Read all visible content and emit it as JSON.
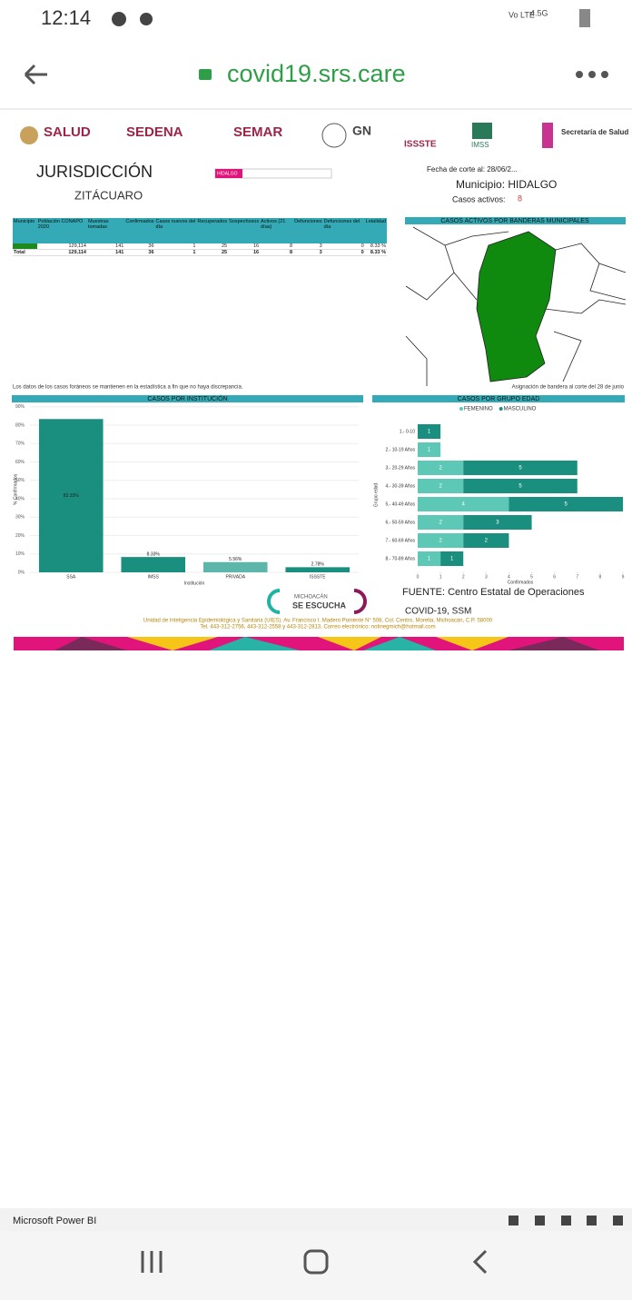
{
  "status": {
    "time": "12:14",
    "network": "Vo LTE",
    "speed": "4.5G"
  },
  "browser": {
    "url": "covid19.srs.care"
  },
  "logos": [
    "SALUD",
    "SEDENA",
    "SEMAR",
    "GN",
    "ISSSTE",
    "IMSS",
    "Secretaría de Salud"
  ],
  "header": {
    "title": "JURISDICCIÓN",
    "subtitle": "ZITÁCUARO",
    "filter": "HIDALGO",
    "date": "Fecha de corte al: 28/06/2...",
    "municipio": "Municipio: HIDALGO",
    "activos_label": "Casos activos:",
    "activos_value": "8"
  },
  "table": {
    "columns": [
      "Municipio",
      "Población CONAPO 2020",
      "Muestras tomadas",
      "Confirmados",
      "Casos nuevos del día",
      "Recuperados",
      "Sospechosos",
      "Activos (21 días)",
      "Defunciones",
      "Defunciones del día",
      "Letalidad"
    ],
    "rows": [
      [
        "HIDALGO",
        "129,114",
        "141",
        "36",
        "1",
        "25",
        "16",
        "8",
        "3",
        "0",
        "8.33 %"
      ],
      [
        "Total",
        "129,114",
        "141",
        "36",
        "1",
        "25",
        "16",
        "8",
        "3",
        "0",
        "8.33 %"
      ]
    ],
    "note": "Los datos de los casos foráneos se mantienen en la estadística a fin que no haya discrepancia."
  },
  "map": {
    "title": "CASOS ACTIVOS POR BANDERAS MUNICIPALES",
    "note": "Asignación de bandera al corte del 28 de junio"
  },
  "chart_data": [
    {
      "type": "bar",
      "title": "CASOS POR INSTITUCIÓN",
      "categories": [
        "SSA",
        "IMSS",
        "PRIVADA",
        "ISSSTE"
      ],
      "values": [
        83.33,
        8.33,
        5.56,
        2.78
      ],
      "value_labels": [
        "83.33%",
        "8.33%",
        "5.56%",
        "2.78%"
      ],
      "colors": [
        "#1b8f7f",
        "#1b8f7f",
        "#5cb7aa",
        "#1b8f7f"
      ],
      "ylim": [
        0,
        90
      ],
      "yticks": [
        {
          "value": 0,
          "label": "0%"
        },
        {
          "value": 10,
          "label": "10%"
        },
        {
          "value": 20,
          "label": "20%"
        },
        {
          "value": 30,
          "label": "30%"
        },
        {
          "value": 40,
          "label": "40%"
        },
        {
          "value": 50,
          "label": "50%"
        },
        {
          "value": 60,
          "label": "60%"
        },
        {
          "value": 70,
          "label": "70%"
        },
        {
          "value": 80,
          "label": "80%"
        },
        {
          "value": 90,
          "label": "90%"
        }
      ],
      "ylabel": "% Confirmados",
      "xlabel": "Institución",
      "grid": true
    },
    {
      "type": "hbar",
      "title": "CASOS POR GRUPO EDAD",
      "categories": [
        "1.- 0-10",
        "2.- 10-19 Años",
        "3.- 20-29 Años",
        "4.- 30-39 Años",
        "5.- 40-49 Años",
        "6.- 50-59 Años",
        "7.- 60-69 Años",
        "8.- 70-89 Años"
      ],
      "series": [
        {
          "name": "FEMENINO",
          "color": "#5ec8b6",
          "values": [
            null,
            1,
            2,
            2,
            4,
            2,
            2,
            1
          ]
        },
        {
          "name": "MASCULINO",
          "color": "#1b8f7f",
          "values": [
            1,
            null,
            5,
            5,
            5,
            3,
            2,
            1
          ]
        }
      ],
      "xlim": [
        0,
        9
      ],
      "xticks": [
        0,
        1,
        2,
        3,
        4,
        5,
        6,
        7,
        8,
        9
      ],
      "xlabel": "Confirmados",
      "ylabel": "Grupo edad",
      "stacked": true
    }
  ],
  "footer": {
    "source": "FUENTE: Centro Estatal de Operaciones",
    "source2": "COVID-19, SSM",
    "brand1": "MICHOACÁN",
    "brand2": "SE ESCUCHA",
    "address": "Unidad de Inteligencia Epidemiológica y Sanitaria (UIES). Av. Francisco I. Madero Poniente N° 508, Col. Centro, Morelia, Michoacán, C.P. 58000",
    "contact": "Tel. 443-312-2756, 443-312-2558 y 443-312-2813, Correo electrónico: notinegmich@hotmail.com"
  },
  "app": {
    "name": "Microsoft Power BI"
  }
}
